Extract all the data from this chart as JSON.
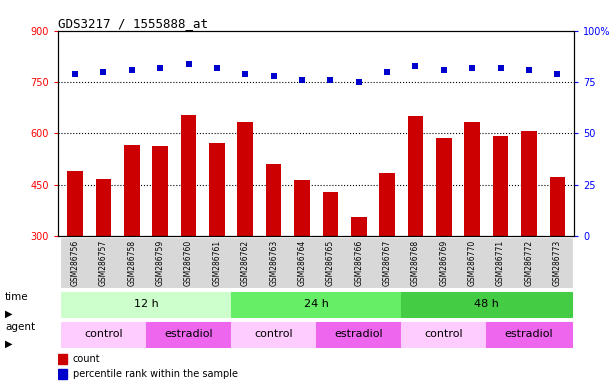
{
  "title": "GDS3217 / 1555888_at",
  "samples": [
    "GSM286756",
    "GSM286757",
    "GSM286758",
    "GSM286759",
    "GSM286760",
    "GSM286761",
    "GSM286762",
    "GSM286763",
    "GSM286764",
    "GSM286765",
    "GSM286766",
    "GSM286767",
    "GSM286768",
    "GSM286769",
    "GSM286770",
    "GSM286771",
    "GSM286772",
    "GSM286773"
  ],
  "counts": [
    490,
    468,
    565,
    563,
    655,
    573,
    633,
    510,
    465,
    430,
    355,
    485,
    650,
    588,
    633,
    593,
    608,
    473
  ],
  "percentiles": [
    79,
    80,
    81,
    82,
    84,
    82,
    79,
    78,
    76,
    76,
    75,
    80,
    83,
    81,
    82,
    82,
    81,
    79
  ],
  "ylim_left": [
    300,
    900
  ],
  "ylim_right": [
    0,
    100
  ],
  "yticks_left": [
    300,
    450,
    600,
    750,
    900
  ],
  "yticks_right": [
    0,
    25,
    50,
    75,
    100
  ],
  "grid_values": [
    450,
    600,
    750
  ],
  "bar_color": "#cc0000",
  "dot_color": "#0000cc",
  "time_groups": [
    {
      "label": "12 h",
      "start": 0,
      "end": 6,
      "color": "#ccffcc"
    },
    {
      "label": "24 h",
      "start": 6,
      "end": 12,
      "color": "#66ee66"
    },
    {
      "label": "48 h",
      "start": 12,
      "end": 18,
      "color": "#44cc44"
    }
  ],
  "agent_groups": [
    {
      "label": "control",
      "start": 0,
      "end": 3,
      "color": "#ffccff"
    },
    {
      "label": "estradiol",
      "start": 3,
      "end": 6,
      "color": "#ee66ee"
    },
    {
      "label": "control",
      "start": 6,
      "end": 9,
      "color": "#ffccff"
    },
    {
      "label": "estradiol",
      "start": 9,
      "end": 12,
      "color": "#ee66ee"
    },
    {
      "label": "control",
      "start": 12,
      "end": 15,
      "color": "#ffccff"
    },
    {
      "label": "estradiol",
      "start": 15,
      "end": 18,
      "color": "#ee66ee"
    }
  ],
  "bg_color": "#d8d8d8",
  "legend_count_color": "#cc0000",
  "legend_dot_color": "#0000cc"
}
